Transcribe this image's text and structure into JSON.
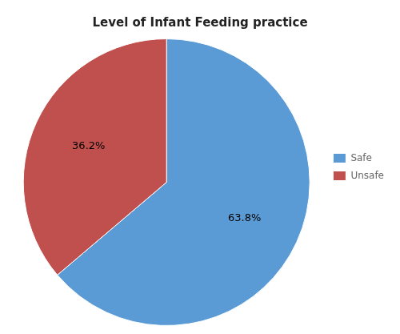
{
  "chart_data": {
    "type": "pie",
    "title": "Level of Infant Feeding practice",
    "categories": [
      "Safe",
      "Unsafe"
    ],
    "values": [
      63.8,
      36.2
    ],
    "value_labels": [
      "63.8%",
      "36.2%"
    ],
    "colors": [
      "#5b9bd5",
      "#c0504d"
    ],
    "data_labels": true,
    "legend": "right"
  }
}
